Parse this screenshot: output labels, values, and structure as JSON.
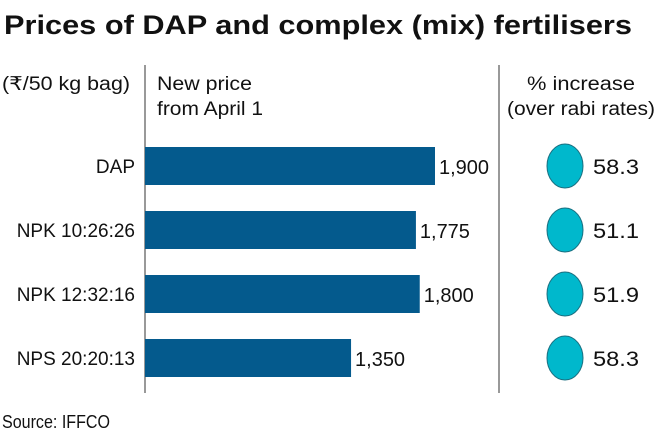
{
  "chart_data": {
    "type": "bar",
    "orientation": "horizontal",
    "title": "Prices of DAP and complex (mix) fertilisers",
    "unit_label": "(₹/50 kg bag)",
    "bar_header": [
      "New price",
      "from April 1"
    ],
    "pct_header": [
      "% increase",
      "(over rabi rates)"
    ],
    "categories": [
      "DAP",
      "NPK 10:26:26",
      "NPK 12:32:16",
      "NPS 20:20:13"
    ],
    "values": [
      1900,
      1775,
      1800,
      1350
    ],
    "value_labels": [
      "1,900",
      "1,775",
      "1,800",
      "1,350"
    ],
    "pct_increase": [
      58.3,
      51.1,
      51.9,
      58.3
    ],
    "pct_labels": [
      "58.3",
      "51.1",
      "51.9",
      "58.3"
    ],
    "source": "Source: IFFCO",
    "grid": false,
    "colors": {
      "bar": "#045a8d",
      "circle": "#00b8cc",
      "circle_stroke": "#1a6f80"
    }
  }
}
